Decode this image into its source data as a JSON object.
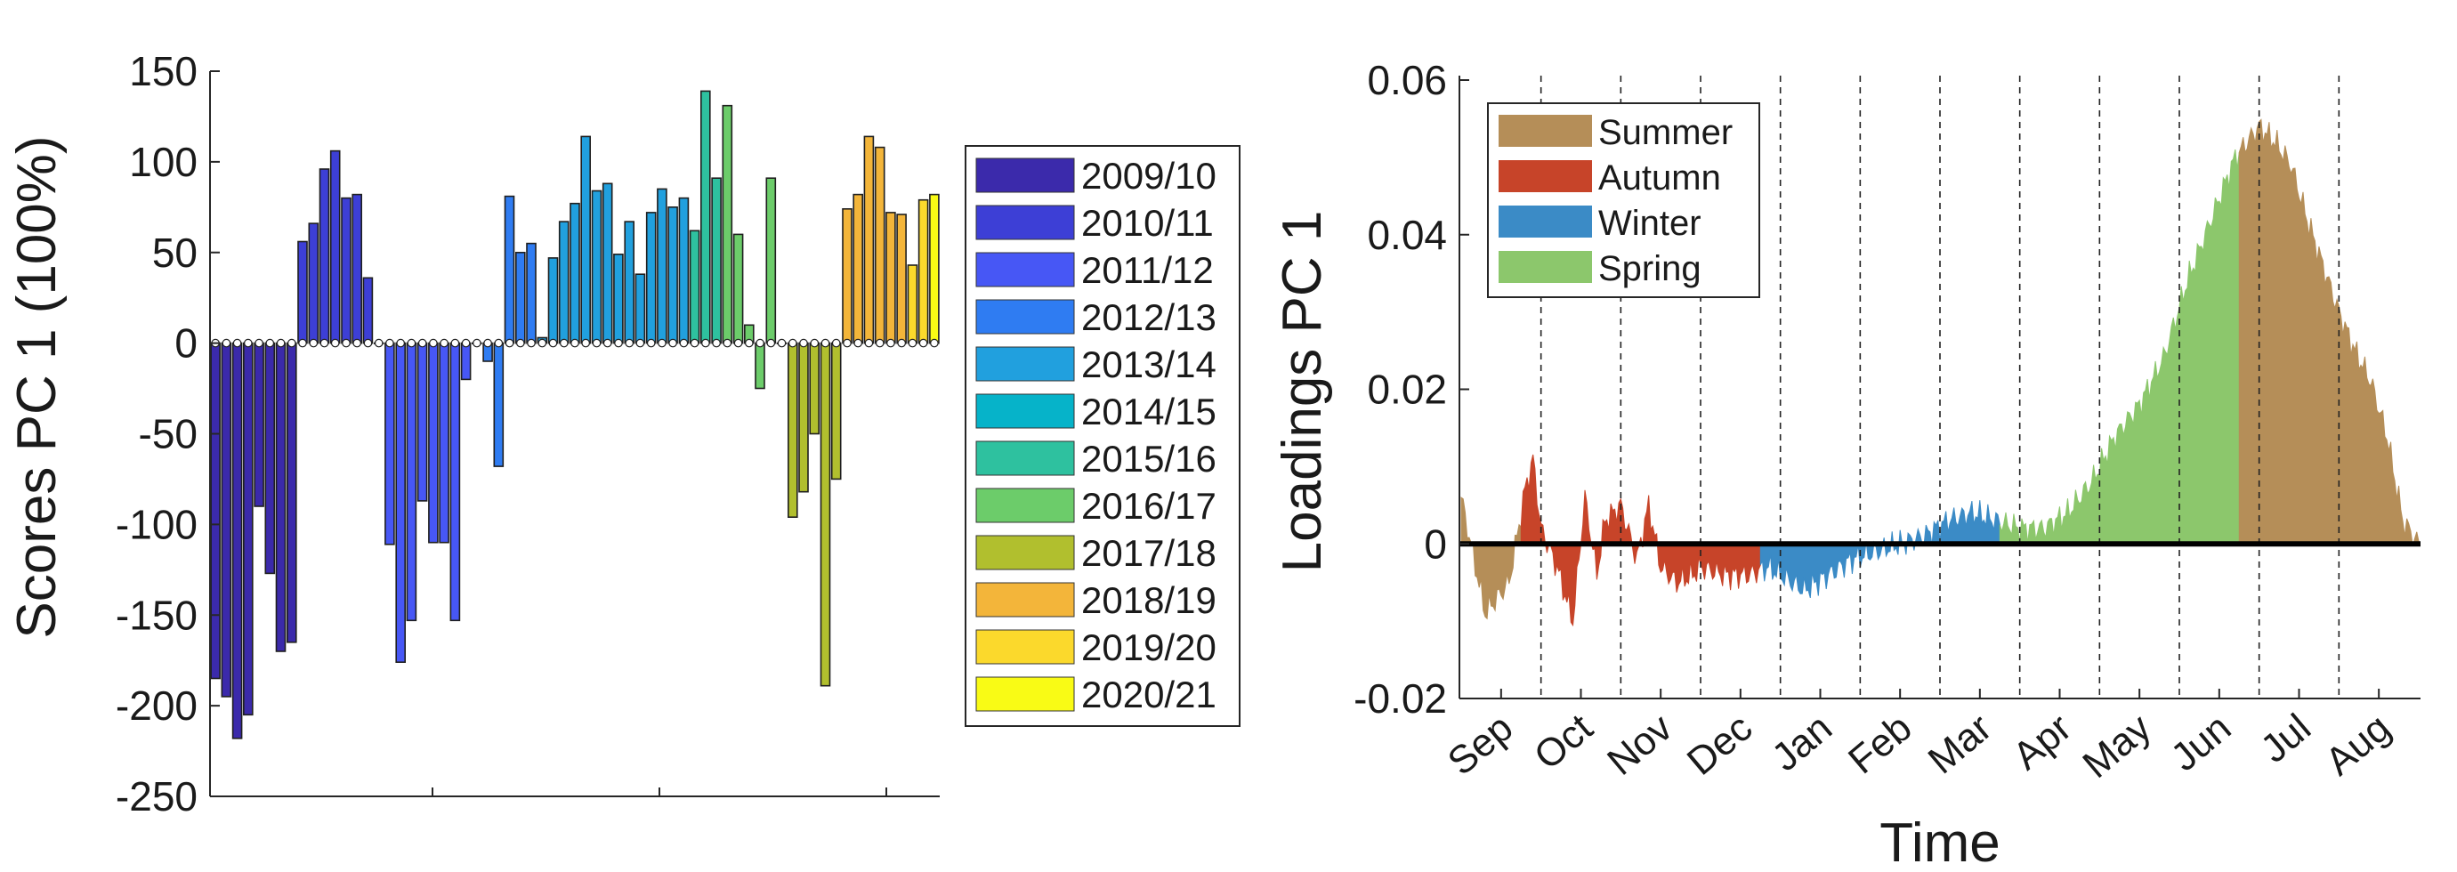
{
  "chart_data": [
    {
      "type": "bar",
      "ylabel": "Scores PC 1 (100%)",
      "ylim": [
        -250,
        150
      ],
      "yticks": [
        150,
        100,
        50,
        0,
        -50,
        -100,
        -150,
        -200,
        -250
      ],
      "yticklabels": [
        "150",
        "100",
        "50",
        "0",
        "-50",
        "-100",
        "-150",
        "-200",
        "-250"
      ],
      "legend": "outside-right",
      "series": [
        {
          "name": "2009/10",
          "color": "#3b2aab",
          "values": [
            -185,
            -195,
            -218,
            -205,
            -90,
            -127,
            -170,
            -165
          ]
        },
        {
          "name": "2010/11",
          "color": "#3d3fd6",
          "values": [
            56,
            66,
            96,
            106,
            80,
            82,
            36,
            0
          ]
        },
        {
          "name": "2011/12",
          "color": "#4757f5",
          "values": [
            -111,
            -176,
            -153,
            -87,
            -110,
            -110,
            -153,
            -20,
            0
          ]
        },
        {
          "name": "2012/13",
          "color": "#2f7cf2",
          "values": [
            -10,
            -68,
            81,
            50,
            55
          ]
        },
        {
          "name": "2013/14",
          "color": "#21a0de",
          "values": [
            3,
            47,
            67,
            77,
            114,
            84,
            88,
            49,
            67,
            38,
            72,
            85,
            75,
            80
          ]
        },
        {
          "name": "2014/15",
          "color": "#06b3c9",
          "values": []
        },
        {
          "name": "2015/16",
          "color": "#2ec19f",
          "values": [
            62,
            139,
            91
          ]
        },
        {
          "name": "2016/17",
          "color": "#6ccc6a",
          "values": [
            131,
            60,
            10,
            -25,
            91,
            0
          ]
        },
        {
          "name": "2017/18",
          "color": "#b1bf2e",
          "values": [
            -96,
            -82,
            -50,
            -189,
            -75
          ]
        },
        {
          "name": "2018/19",
          "color": "#f3b53a",
          "values": [
            74,
            82,
            114,
            108,
            72,
            71
          ]
        },
        {
          "name": "2019/20",
          "color": "#fbd92c",
          "values": [
            43,
            79
          ]
        },
        {
          "name": "2020/21",
          "color": "#f9fb15",
          "values": [
            82
          ]
        }
      ]
    },
    {
      "type": "area",
      "ylabel": "Loadings PC 1",
      "xlabel": "Time",
      "ylim": [
        -0.02,
        0.06
      ],
      "yticks": [
        0.06,
        0.04,
        0.02,
        0,
        -0.02
      ],
      "yticklabels": [
        "0.06",
        "0.04",
        "0.02",
        "0",
        "-0.02"
      ],
      "categories": [
        "Sep",
        "Oct",
        "Nov",
        "Dec",
        "Jan",
        "Feb",
        "Mar",
        "Apr",
        "May",
        "Jun",
        "Jul",
        "Aug"
      ],
      "grid": "dashed vertical lines between months",
      "legend": "top-left",
      "series": [
        {
          "name": "Summer",
          "color": "#b58e58"
        },
        {
          "name": "Autumn",
          "color": "#c74429"
        },
        {
          "name": "Winter",
          "color": "#3b8bc6"
        },
        {
          "name": "Spring",
          "color": "#8cc76c"
        }
      ],
      "x": [
        0,
        0.3,
        0.6,
        0.8,
        0.9,
        1.0,
        1.2,
        1.4,
        1.55,
        1.7,
        1.8,
        2.0,
        2.2,
        2.35,
        2.5,
        2.7,
        2.9,
        3.0,
        3.3,
        3.6,
        3.85,
        4.0,
        4.3,
        4.6,
        4.9,
        5.2,
        5.5,
        5.8,
        6.1,
        6.4,
        6.7,
        7.0,
        7.3,
        7.6,
        7.9,
        8.2,
        8.5,
        8.8,
        9.1,
        9.4,
        9.7,
        10.0,
        10.2,
        10.4,
        10.6,
        10.8,
        11.0,
        11.2,
        11.4,
        11.6,
        11.8,
        12.0
      ],
      "y": [
        0.006,
        -0.009,
        -0.005,
        0.007,
        0.011,
        0.002,
        -0.003,
        -0.01,
        0.006,
        -0.004,
        0.003,
        0.005,
        -0.002,
        0.005,
        -0.003,
        -0.005,
        -0.004,
        -0.003,
        -0.004,
        -0.004,
        -0.003,
        -0.004,
        -0.006,
        -0.004,
        -0.002,
        -0.001,
        0.0,
        0.001,
        0.003,
        0.004,
        0.003,
        0.002,
        0.002,
        0.004,
        0.008,
        0.014,
        0.018,
        0.024,
        0.034,
        0.042,
        0.05,
        0.054,
        0.052,
        0.049,
        0.042,
        0.036,
        0.03,
        0.025,
        0.021,
        0.014,
        0.003,
        0.0
      ],
      "season_bounds": [
        [
          0,
          0.75,
          "Summer"
        ],
        [
          0.75,
          3.75,
          "Autumn"
        ],
        [
          3.75,
          6.75,
          "Winter"
        ],
        [
          6.75,
          9.75,
          "Spring"
        ],
        [
          9.75,
          12,
          "Summer"
        ]
      ]
    }
  ]
}
